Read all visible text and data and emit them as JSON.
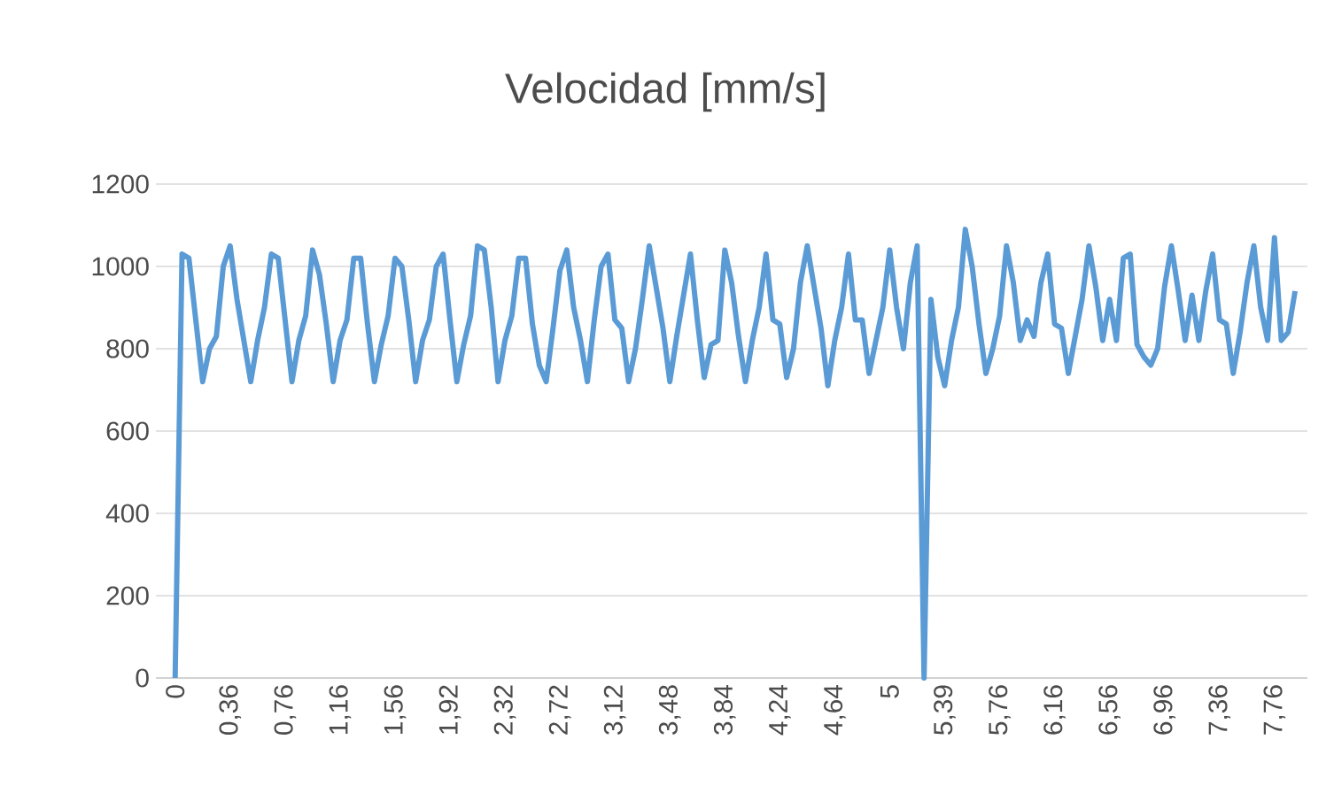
{
  "chart_data": {
    "type": "line",
    "title": "Velocidad [mm/s]",
    "categories": [
      "0",
      null,
      null,
      null,
      null,
      null,
      null,
      null,
      "0,36",
      null,
      null,
      null,
      null,
      null,
      null,
      null,
      "0,76",
      null,
      null,
      null,
      null,
      null,
      null,
      null,
      "1,16",
      null,
      null,
      null,
      null,
      null,
      null,
      null,
      "1,56",
      null,
      null,
      null,
      null,
      null,
      null,
      null,
      "1,92",
      null,
      null,
      null,
      null,
      null,
      null,
      null,
      "2,32",
      null,
      null,
      null,
      null,
      null,
      null,
      null,
      "2,72",
      null,
      null,
      null,
      null,
      null,
      null,
      null,
      "3,12",
      null,
      null,
      null,
      null,
      null,
      null,
      null,
      "3,48",
      null,
      null,
      null,
      null,
      null,
      null,
      null,
      "3,84",
      null,
      null,
      null,
      null,
      null,
      null,
      null,
      "4,24",
      null,
      null,
      null,
      null,
      null,
      null,
      null,
      "4,64",
      null,
      null,
      null,
      null,
      null,
      null,
      null,
      "5",
      null,
      null,
      null,
      null,
      null,
      null,
      null,
      "5,39",
      null,
      null,
      null,
      null,
      null,
      null,
      null,
      "5,76",
      null,
      null,
      null,
      null,
      null,
      null,
      null,
      "6,16",
      null,
      null,
      null,
      null,
      null,
      null,
      null,
      "6,56",
      null,
      null,
      null,
      null,
      null,
      null,
      null,
      "6,96",
      null,
      null,
      null,
      null,
      null,
      null,
      null,
      "7,36",
      null,
      null,
      null,
      null,
      null,
      null,
      null,
      "7,76",
      null,
      null,
      null
    ],
    "series": [
      {
        "color": "#5b9bd5",
        "values": [
          0,
          1030,
          1020,
          870,
          720,
          800,
          830,
          1000,
          1050,
          920,
          820,
          720,
          820,
          900,
          1030,
          1020,
          870,
          720,
          820,
          880,
          1040,
          980,
          860,
          720,
          820,
          870,
          1020,
          1020,
          860,
          720,
          810,
          880,
          1020,
          1000,
          870,
          720,
          820,
          870,
          1000,
          1030,
          870,
          720,
          810,
          880,
          1050,
          1040,
          900,
          720,
          820,
          880,
          1020,
          1020,
          860,
          760,
          720,
          850,
          990,
          1040,
          900,
          820,
          720,
          870,
          1000,
          1030,
          870,
          850,
          720,
          800,
          920,
          1050,
          950,
          850,
          720,
          830,
          930,
          1030,
          870,
          730,
          810,
          820,
          1040,
          960,
          830,
          720,
          820,
          900,
          1030,
          870,
          860,
          730,
          800,
          960,
          1050,
          950,
          850,
          710,
          820,
          900,
          1030,
          870,
          870,
          740,
          820,
          900,
          1040,
          900,
          800,
          960,
          1050,
          0,
          920,
          780,
          710,
          820,
          900,
          1090,
          1000,
          860,
          740,
          800,
          880,
          1050,
          960,
          820,
          870,
          830,
          960,
          1030,
          860,
          850,
          740,
          830,
          920,
          1050,
          950,
          820,
          920,
          820,
          1020,
          1030,
          810,
          780,
          760,
          800,
          950,
          1050,
          940,
          820,
          930,
          820,
          940,
          1030,
          870,
          860,
          740,
          840,
          960,
          1050,
          900,
          820,
          1070,
          820,
          840,
          940
        ]
      }
    ],
    "ylim": [
      0,
      1200
    ],
    "yticks": [
      0,
      200,
      400,
      600,
      800,
      1000,
      1200
    ],
    "grid": "y",
    "legend": false,
    "marker": "none",
    "line_style": "solid"
  }
}
